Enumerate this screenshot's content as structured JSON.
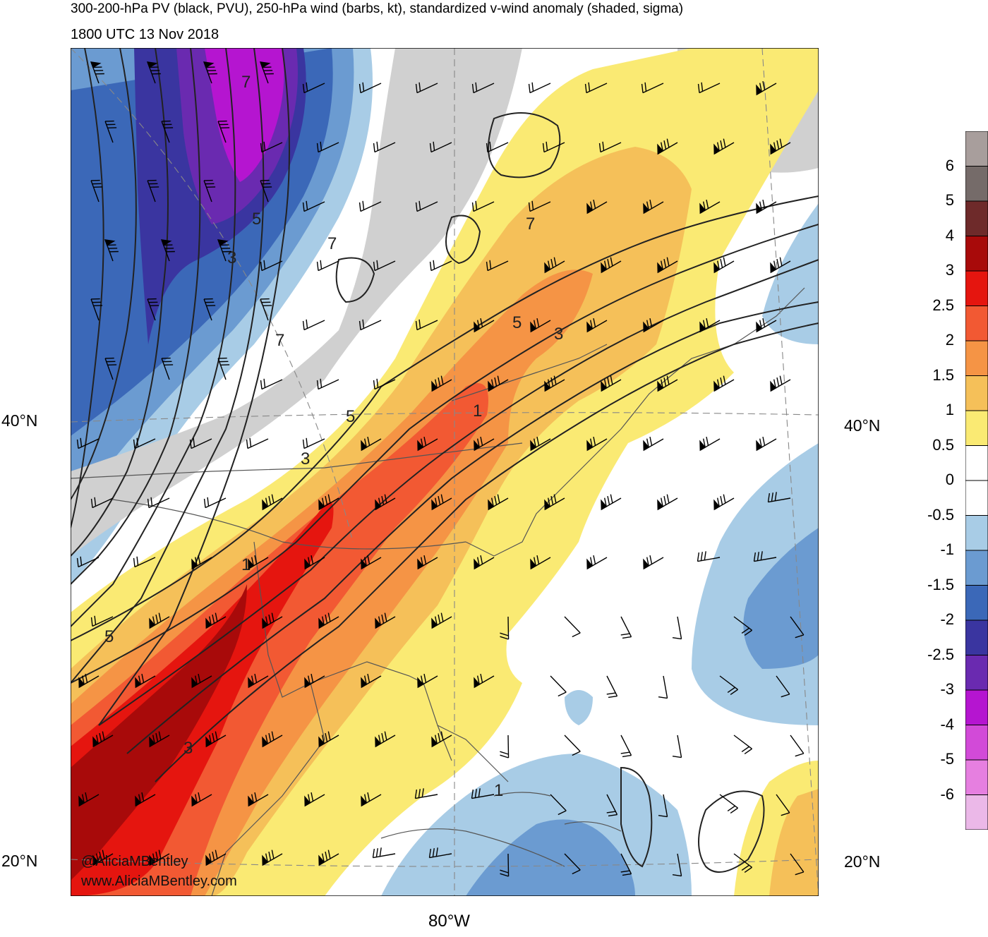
{
  "header": {
    "line1": "300-200-hPa PV (black, PVU), 250-hPa wind (barbs, kt), standardized v-wind anomaly (shaded, sigma)",
    "line2": "1800 UTC 13 Nov 2018"
  },
  "axes": {
    "lat_labels": [
      "40°N",
      "20°N"
    ],
    "lon_label": "80°W"
  },
  "credits": {
    "twitter": "@AliciaMBentley",
    "website": "www.AliciaMBentley.com"
  },
  "colorbar": {
    "labels": [
      "6",
      "5",
      "4",
      "3",
      "2.5",
      "2",
      "1.5",
      "1",
      "0.5",
      "0",
      "-0.5",
      "-1",
      "-1.5",
      "-2",
      "-2.5",
      "-3",
      "-4",
      "-5",
      "-6"
    ],
    "colors": [
      "#a89e9c",
      "#756b69",
      "#6e2a2a",
      "#a80a0a",
      "#e5150f",
      "#f25933",
      "#f59445",
      "#f5c059",
      "#faea73",
      "#ffffff",
      "#ffffff",
      "#a8cce6",
      "#6b9bd1",
      "#3b68b8",
      "#3a35a0",
      "#6a2ab0",
      "#b515d0",
      "#d24ad8",
      "#e67fe0",
      "#ebb8e8"
    ]
  },
  "pv_contour_labels": [
    "7",
    "5",
    "3",
    "7",
    "5",
    "3",
    "7",
    "5",
    "3",
    "1",
    "1",
    "7",
    "5",
    "3",
    "1"
  ],
  "shading_colors": {
    "land_gray": "#d0d0d0",
    "grid_gray": "#888888",
    "border_gray": "#555555"
  }
}
